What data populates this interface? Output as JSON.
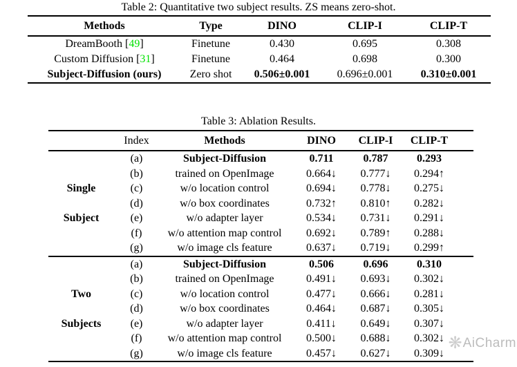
{
  "table2": {
    "title": "Table 2: Quantitative two subject results. ZS means zero-shot.",
    "headers": [
      "Methods",
      "Type",
      "DINO",
      "CLIP-I",
      "CLIP-T"
    ],
    "rows": [
      {
        "cells": [
          {
            "t": "DreamBooth",
            "cite": "49"
          },
          {
            "t": "Finetune"
          },
          {
            "t": "0.430"
          },
          {
            "t": "0.695"
          },
          {
            "t": "0.308"
          }
        ]
      },
      {
        "cells": [
          {
            "t": "Custom Diffusion",
            "cite": "31"
          },
          {
            "t": "Finetune"
          },
          {
            "t": "0.464"
          },
          {
            "t": "0.698"
          },
          {
            "t": "0.300"
          }
        ]
      },
      {
        "cells": [
          {
            "t": "Subject-Diffusion (ours)",
            "b": true
          },
          {
            "t": "Zero shot"
          },
          {
            "t": "0.506±0.001",
            "b": true
          },
          {
            "t": "0.696±0.001"
          },
          {
            "t": "0.310±0.001",
            "b": true
          }
        ]
      }
    ]
  },
  "table3": {
    "title": "Table 3: Ablation Results.",
    "headers": [
      "Index",
      "Methods",
      "DINO",
      "CLIP-I",
      "CLIP-T"
    ],
    "groups": [
      {
        "label_lines": [
          "Single",
          "Subject"
        ],
        "rows": [
          {
            "index": "(a)",
            "method": "Subject-Diffusion",
            "dino": "0.711",
            "clip_i": "0.787",
            "clip_t": "0.293",
            "b": true
          },
          {
            "index": "(b)",
            "method": "trained on OpenImage",
            "dino": "0.664↓",
            "clip_i": "0.777↓",
            "clip_t": "0.294↑"
          },
          {
            "index": "(c)",
            "method": "w/o location control",
            "dino": "0.694↓",
            "clip_i": "0.778↓",
            "clip_t": "0.275↓"
          },
          {
            "index": "(d)",
            "method": "w/o box coordinates",
            "dino": "0.732↑",
            "clip_i": "0.810↑",
            "clip_t": "0.282↓"
          },
          {
            "index": "(e)",
            "method": "w/o adapter layer",
            "dino": "0.534↓",
            "clip_i": "0.731↓",
            "clip_t": "0.291↓"
          },
          {
            "index": "(f)",
            "method": "w/o attention map control",
            "dino": "0.692↓",
            "clip_i": "0.789↑",
            "clip_t": "0.288↓"
          },
          {
            "index": "(g)",
            "method": "w/o image cls feature",
            "dino": "0.637↓",
            "clip_i": "0.719↓",
            "clip_t": "0.299↑"
          }
        ]
      },
      {
        "label_lines": [
          "Two",
          "Subjects"
        ],
        "rows": [
          {
            "index": "(a)",
            "method": "Subject-Diffusion",
            "dino": "0.506",
            "clip_i": "0.696",
            "clip_t": "0.310",
            "b": true
          },
          {
            "index": "(b)",
            "method": "trained on OpenImage",
            "dino": "0.491↓",
            "clip_i": "0.693↓",
            "clip_t": "0.302↓"
          },
          {
            "index": "(c)",
            "method": "w/o location control",
            "dino": "0.477↓",
            "clip_i": "0.666↓",
            "clip_t": "0.281↓"
          },
          {
            "index": "(d)",
            "method": "w/o box coordinates",
            "dino": "0.464↓",
            "clip_i": "0.687↓",
            "clip_t": "0.305↓"
          },
          {
            "index": "(e)",
            "method": "w/o adapter layer",
            "dino": "0.411↓",
            "clip_i": "0.649↓",
            "clip_t": "0.307↓"
          },
          {
            "index": "(f)",
            "method": "w/o attention map control",
            "dino": "0.500↓",
            "clip_i": "0.688↓",
            "clip_t": "0.302↓"
          },
          {
            "index": "(g)",
            "method": "w/o image cls feature",
            "dino": "0.457↓",
            "clip_i": "0.627↓",
            "clip_t": "0.309↓"
          }
        ]
      }
    ]
  },
  "watermark": {
    "logo_icon": "❋",
    "text": "AiCharm",
    "text_color": "#a6a6a6",
    "logo_color": "#bdbdbd"
  },
  "colors": {
    "citation_green": "#00e100",
    "text": "#000000",
    "background": "#ffffff"
  }
}
